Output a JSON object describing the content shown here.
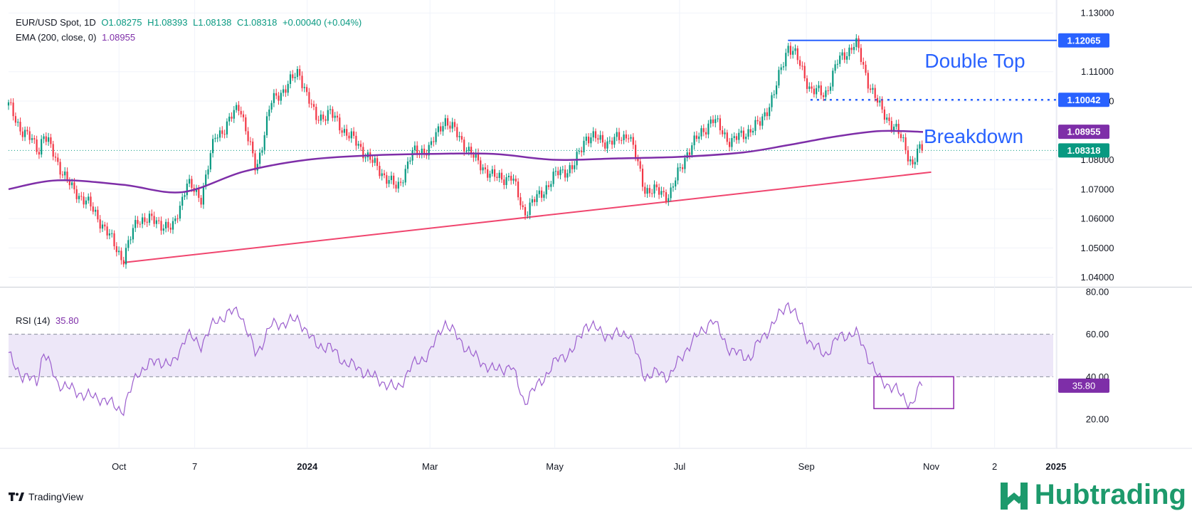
{
  "header": {
    "symbol": "EUR/USD Spot, 1D",
    "open": "O1.08275",
    "high": "H1.08393",
    "low": "L1.08138",
    "close": "C1.08318",
    "change": "+0.00040 (+0.04%)",
    "ema_label": "EMA (200, close, 0)",
    "ema_value": "1.08955",
    "rsi_label": "RSI (14)",
    "rsi_value": "35.80"
  },
  "branding": {
    "tradingview": "TradingView",
    "hubtrading": "Hubtrading"
  },
  "colors": {
    "up": "#089981",
    "down": "#f23645",
    "ema": "#7e2ea8",
    "trend": "#f0456e",
    "level": "#2962ff",
    "rsi": "#9c5fce",
    "rsi_band": "#ede7f8"
  },
  "chart_data": [
    {
      "type": "candlestick",
      "title": "EUR/USD Spot, 1D",
      "ylim": [
        1.037,
        1.1315
      ],
      "y_ticks": [
        "1.13000",
        "1.11000",
        "1.10000",
        "1.08000",
        "1.07000",
        "1.06000",
        "1.05000",
        "1.04000"
      ],
      "y_tick_values": [
        1.13,
        1.11,
        1.1,
        1.08,
        1.07,
        1.06,
        1.05,
        1.04
      ],
      "x_ticks": [
        "Oct",
        "7",
        "2024",
        "Mar",
        "May",
        "Jul",
        "Sep",
        "Nov",
        "2",
        "2025"
      ],
      "price_path": [
        [
          "2023-08-08",
          1.0985
        ],
        [
          "2023-08-14",
          1.0905
        ],
        [
          "2023-08-18",
          1.0875
        ],
        [
          "2023-08-23",
          1.0835
        ],
        [
          "2023-08-25",
          1.089
        ],
        [
          "2023-09-01",
          1.079
        ],
        [
          "2023-09-08",
          1.07
        ],
        [
          "2023-09-15",
          1.066
        ],
        [
          "2023-09-22",
          1.059
        ],
        [
          "2023-10-03",
          1.046
        ],
        [
          "2023-10-10",
          1.06
        ],
        [
          "2023-10-20",
          1.059
        ],
        [
          "2023-10-27",
          1.056
        ],
        [
          "2023-11-03",
          1.072
        ],
        [
          "2023-11-10",
          1.067
        ],
        [
          "2023-11-17",
          1.088
        ],
        [
          "2023-11-22",
          1.091
        ],
        [
          "2023-11-29",
          1.099
        ],
        [
          "2023-12-07",
          1.076
        ],
        [
          "2023-12-14",
          1.099
        ],
        [
          "2023-12-28",
          1.11
        ],
        [
          "2024-01-05",
          1.094
        ],
        [
          "2024-01-12",
          1.096
        ],
        [
          "2024-01-19",
          1.09
        ],
        [
          "2024-01-26",
          1.085
        ],
        [
          "2024-02-02",
          1.079
        ],
        [
          "2024-02-14",
          1.07
        ],
        [
          "2024-02-21",
          1.082
        ],
        [
          "2024-03-01",
          1.084
        ],
        [
          "2024-03-08",
          1.094
        ],
        [
          "2024-03-15",
          1.088
        ],
        [
          "2024-03-22",
          1.081
        ],
        [
          "2024-04-01",
          1.074
        ],
        [
          "2024-04-10",
          1.074
        ],
        [
          "2024-04-16",
          1.062
        ],
        [
          "2024-04-26",
          1.07
        ],
        [
          "2024-05-03",
          1.076
        ],
        [
          "2024-05-10",
          1.077
        ],
        [
          "2024-05-16",
          1.088
        ],
        [
          "2024-05-28",
          1.086
        ],
        [
          "2024-06-04",
          1.088
        ],
        [
          "2024-06-06",
          1.0895
        ],
        [
          "2024-06-14",
          1.07
        ],
        [
          "2024-06-21",
          1.069
        ],
        [
          "2024-06-26",
          1.068
        ],
        [
          "2024-07-05",
          1.083
        ],
        [
          "2024-07-17",
          1.094
        ],
        [
          "2024-07-26",
          1.086
        ],
        [
          "2024-08-05",
          1.0905
        ],
        [
          "2024-08-09",
          1.092
        ],
        [
          "2024-08-16",
          1.102
        ],
        [
          "2024-08-23",
          1.119
        ],
        [
          "2024-08-26",
          1.1165
        ],
        [
          "2024-09-03",
          1.104
        ],
        [
          "2024-09-10",
          1.102
        ],
        [
          "2024-09-16",
          1.113
        ],
        [
          "2024-09-25",
          1.12
        ],
        [
          "2024-10-01",
          1.107
        ],
        [
          "2024-10-07",
          1.0975
        ],
        [
          "2024-10-14",
          1.091
        ],
        [
          "2024-10-18",
          1.0865
        ],
        [
          "2024-10-23",
          1.078
        ],
        [
          "2024-10-25",
          1.0825
        ],
        [
          "2024-10-28",
          1.0832
        ]
      ],
      "last_close": 1.08318,
      "ema200": {
        "name": "EMA (200, close, 0)",
        "value": 1.08955,
        "values": [
          [
            "2023-08-08",
            1.07
          ],
          [
            "2023-09-01",
            1.073
          ],
          [
            "2023-10-03",
            1.0715
          ],
          [
            "2023-11-01",
            1.069
          ],
          [
            "2023-12-01",
            1.076
          ],
          [
            "2024-01-01",
            1.08
          ],
          [
            "2024-02-01",
            1.0815
          ],
          [
            "2024-03-01",
            1.082
          ],
          [
            "2024-04-01",
            1.082
          ],
          [
            "2024-05-01",
            1.08
          ],
          [
            "2024-06-01",
            1.0805
          ],
          [
            "2024-07-01",
            1.081
          ],
          [
            "2024-08-01",
            1.0825
          ],
          [
            "2024-08-23",
            1.085
          ],
          [
            "2024-09-16",
            1.088
          ],
          [
            "2024-10-07",
            1.0898
          ],
          [
            "2024-10-28",
            1.0895
          ]
        ]
      },
      "annotations": {
        "double_top": {
          "label": "Double Top",
          "level": 1.12065,
          "from": "2024-08-23",
          "to": "2024-11-12"
        },
        "breakdown": {
          "label": "Breakdown",
          "level": 1.10042,
          "from": "2024-09-03",
          "to": "2024-11-12"
        },
        "trendline": {
          "from": [
            "2023-10-03",
            1.045
          ],
          "to": [
            "2024-11-01",
            1.0758
          ]
        }
      },
      "price_labels": [
        {
          "text": "1.12065",
          "value": 1.12065,
          "color": "#2962ff"
        },
        {
          "text": "1.10042",
          "value": 1.10042,
          "color": "#2962ff"
        },
        {
          "text": "1.08955",
          "value": 1.08955,
          "color": "#7e2ea8"
        },
        {
          "text": "1.08318",
          "value": 1.08318,
          "color": "#089981"
        }
      ]
    },
    {
      "type": "line",
      "title": "RSI (14)",
      "ylim": [
        18,
        82
      ],
      "y_ticks": [
        "80.00",
        "60.00",
        "40.00",
        "20.00"
      ],
      "y_tick_values": [
        80,
        60,
        40,
        20
      ],
      "bands": [
        40,
        60
      ],
      "value": 35.8,
      "series": [
        [
          "2023-08-08",
          50
        ],
        [
          "2023-08-15",
          40
        ],
        [
          "2023-08-22",
          38
        ],
        [
          "2023-08-25",
          52
        ],
        [
          "2023-09-01",
          37
        ],
        [
          "2023-09-08",
          34
        ],
        [
          "2023-09-15",
          31
        ],
        [
          "2023-09-22",
          30
        ],
        [
          "2023-10-03",
          24
        ],
        [
          "2023-10-10",
          42
        ],
        [
          "2023-10-20",
          48
        ],
        [
          "2023-10-27",
          45
        ],
        [
          "2023-11-03",
          60
        ],
        [
          "2023-11-10",
          55
        ],
        [
          "2023-11-17",
          66
        ],
        [
          "2023-11-24",
          70
        ],
        [
          "2023-11-29",
          71
        ],
        [
          "2023-12-07",
          50
        ],
        [
          "2023-12-14",
          64
        ],
        [
          "2023-12-28",
          67
        ],
        [
          "2024-01-05",
          55
        ],
        [
          "2024-01-12",
          54
        ],
        [
          "2024-01-19",
          47
        ],
        [
          "2024-01-26",
          44
        ],
        [
          "2024-02-02",
          40
        ],
        [
          "2024-02-14",
          34
        ],
        [
          "2024-02-21",
          45
        ],
        [
          "2024-03-01",
          51
        ],
        [
          "2024-03-08",
          66
        ],
        [
          "2024-03-15",
          58
        ],
        [
          "2024-03-22",
          50
        ],
        [
          "2024-04-01",
          43
        ],
        [
          "2024-04-10",
          45
        ],
        [
          "2024-04-16",
          28
        ],
        [
          "2024-04-26",
          40
        ],
        [
          "2024-05-03",
          49
        ],
        [
          "2024-05-10",
          52
        ],
        [
          "2024-05-16",
          65
        ],
        [
          "2024-05-28",
          59
        ],
        [
          "2024-06-06",
          61
        ],
        [
          "2024-06-14",
          40
        ],
        [
          "2024-06-21",
          42
        ],
        [
          "2024-06-26",
          40
        ],
        [
          "2024-07-05",
          54
        ],
        [
          "2024-07-17",
          67
        ],
        [
          "2024-07-26",
          52
        ],
        [
          "2024-08-05",
          49
        ],
        [
          "2024-08-09",
          57
        ],
        [
          "2024-08-16",
          65
        ],
        [
          "2024-08-23",
          75
        ],
        [
          "2024-08-26",
          70
        ],
        [
          "2024-09-03",
          56
        ],
        [
          "2024-09-10",
          50
        ],
        [
          "2024-09-16",
          58
        ],
        [
          "2024-09-25",
          61
        ],
        [
          "2024-10-01",
          50
        ],
        [
          "2024-10-07",
          38
        ],
        [
          "2024-10-14",
          35
        ],
        [
          "2024-10-18",
          30
        ],
        [
          "2024-10-23",
          27
        ],
        [
          "2024-10-25",
          33
        ],
        [
          "2024-10-28",
          35.8
        ]
      ],
      "box": {
        "from": "2024-10-04",
        "to": "2024-11-12",
        "y": [
          25,
          40
        ]
      }
    }
  ]
}
